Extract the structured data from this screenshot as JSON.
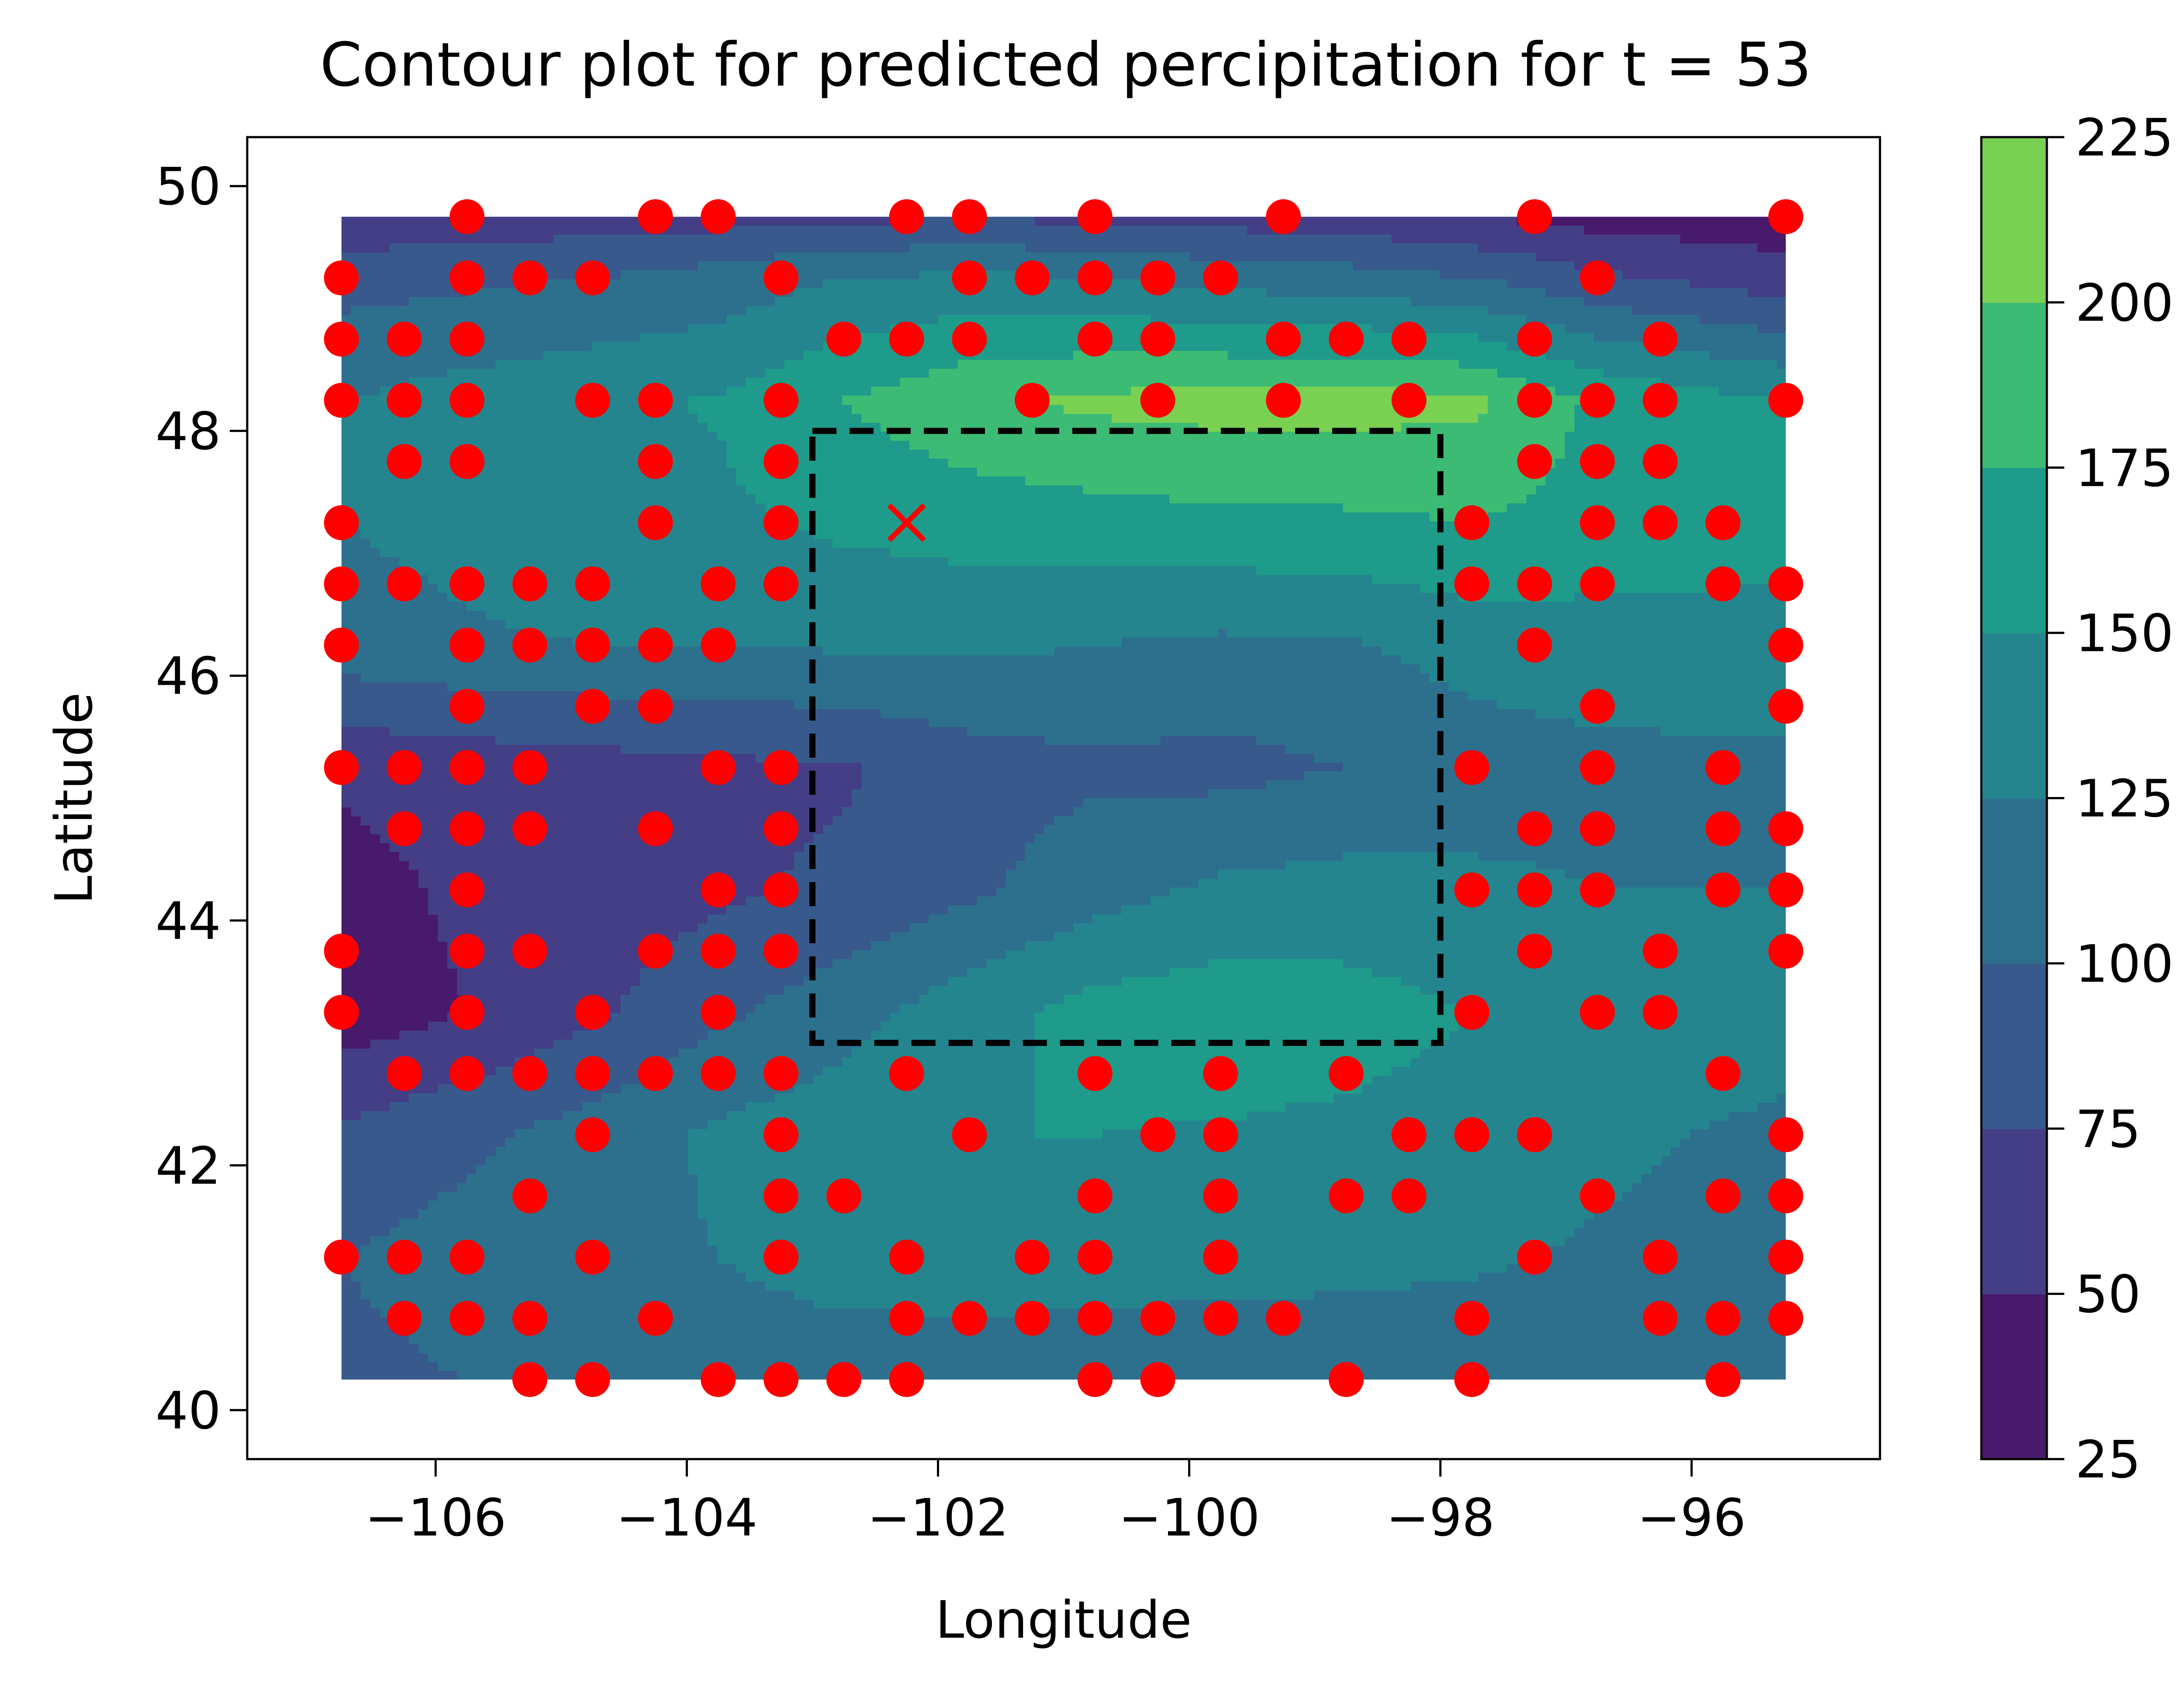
{
  "chart_data": {
    "type": "contour",
    "title": "Contour plot for predicted percipitation for t = 53",
    "xlabel": "Longitude",
    "ylabel": "Latitude",
    "xlim": [
      -107.5,
      -94.5
    ],
    "ylim": [
      39.6,
      50.4
    ],
    "x_ticks": [
      -106,
      -104,
      -102,
      -100,
      -98,
      -96
    ],
    "x_tick_labels": [
      "−106",
      "−104",
      "−102",
      "−100",
      "−98",
      "−96"
    ],
    "y_ticks": [
      40,
      42,
      44,
      46,
      48,
      50
    ],
    "y_tick_labels": [
      "40",
      "42",
      "44",
      "46",
      "48",
      "50"
    ],
    "grid": false,
    "colorbar": {
      "levels": [
        25,
        50,
        75,
        100,
        125,
        150,
        175,
        200,
        225
      ],
      "tick_labels": [
        "25",
        "50",
        "75",
        "100",
        "125",
        "150",
        "175",
        "200",
        "225"
      ],
      "colors": [
        "#481a6c",
        "#433e85",
        "#38598c",
        "#2d708e",
        "#25858e",
        "#1e9b8a",
        "#3cbb75",
        "#7ad151",
        "#d2e21b"
      ]
    },
    "field": {
      "lon": [
        -106.75,
        -105.75,
        -104.75,
        -103.75,
        -102.75,
        -101.75,
        -100.75,
        -99.75,
        -98.75,
        -97.75,
        -96.75,
        -95.25
      ],
      "lat": [
        40.25,
        41.25,
        42.25,
        43.25,
        44.25,
        45.25,
        46.25,
        47.25,
        48.25,
        49.25,
        49.75
      ],
      "values": [
        [
          95,
          100,
          108,
          112,
          112,
          108,
          105,
          105,
          108,
          110,
          108,
          105
        ],
        [
          100,
          110,
          115,
          125,
          135,
          140,
          140,
          135,
          132,
          128,
          122,
          115
        ],
        [
          80,
          95,
          110,
          130,
          140,
          150,
          150,
          148,
          145,
          140,
          130,
          120
        ],
        [
          35,
          50,
          70,
          95,
          115,
          140,
          160,
          165,
          160,
          150,
          140,
          135
        ],
        [
          40,
          55,
          60,
          70,
          80,
          95,
          115,
          130,
          135,
          130,
          125,
          125
        ],
        [
          55,
          60,
          65,
          70,
          72,
          88,
          95,
          92,
          100,
          112,
          118,
          120
        ],
        [
          115,
          122,
          125,
          125,
          128,
          130,
          125,
          120,
          122,
          135,
          140,
          140
        ],
        [
          125,
          132,
          140,
          145,
          155,
          160,
          165,
          168,
          170,
          175,
          165,
          160
        ],
        [
          125,
          135,
          145,
          152,
          175,
          195,
          205,
          210,
          210,
          205,
          170,
          150
        ],
        [
          90,
          95,
          100,
          110,
          125,
          130,
          125,
          115,
          110,
          100,
          80,
          60
        ],
        [
          55,
          60,
          62,
          65,
          70,
          72,
          70,
          65,
          60,
          50,
          40,
          35
        ]
      ]
    },
    "region_box": {
      "lon": [
        -103,
        -98
      ],
      "lat": [
        43,
        48
      ],
      "style": "dashed"
    },
    "target_marker": {
      "lon": -102.25,
      "lat": 47.25,
      "symbol": "x"
    },
    "station_points": [
      [
        -106.75,
        49.25
      ],
      [
        -106.75,
        48.75
      ],
      [
        -106.75,
        48.25
      ],
      [
        -106.75,
        47.25
      ],
      [
        -106.75,
        46.75
      ],
      [
        -106.75,
        46.25
      ],
      [
        -106.75,
        45.25
      ],
      [
        -106.75,
        43.75
      ],
      [
        -106.75,
        43.25
      ],
      [
        -106.75,
        41.25
      ],
      [
        -106.25,
        48.75
      ],
      [
        -106.25,
        48.25
      ],
      [
        -106.25,
        47.75
      ],
      [
        -106.25,
        46.75
      ],
      [
        -106.25,
        45.25
      ],
      [
        -106.25,
        44.75
      ],
      [
        -106.25,
        42.75
      ],
      [
        -106.25,
        41.25
      ],
      [
        -106.25,
        40.75
      ],
      [
        -105.75,
        49.75
      ],
      [
        -105.75,
        49.25
      ],
      [
        -105.75,
        48.75
      ],
      [
        -105.75,
        48.25
      ],
      [
        -105.75,
        47.75
      ],
      [
        -105.75,
        46.75
      ],
      [
        -105.75,
        46.25
      ],
      [
        -105.75,
        45.75
      ],
      [
        -105.75,
        45.25
      ],
      [
        -105.75,
        44.75
      ],
      [
        -105.75,
        44.25
      ],
      [
        -105.75,
        43.75
      ],
      [
        -105.75,
        43.25
      ],
      [
        -105.75,
        42.75
      ],
      [
        -105.75,
        41.25
      ],
      [
        -105.75,
        40.75
      ],
      [
        -105.25,
        49.25
      ],
      [
        -105.25,
        46.75
      ],
      [
        -105.25,
        46.25
      ],
      [
        -105.25,
        45.25
      ],
      [
        -105.25,
        44.75
      ],
      [
        -105.25,
        43.75
      ],
      [
        -105.25,
        42.75
      ],
      [
        -105.25,
        41.75
      ],
      [
        -105.25,
        40.75
      ],
      [
        -105.25,
        40.25
      ],
      [
        -104.75,
        49.25
      ],
      [
        -104.75,
        48.25
      ],
      [
        -104.75,
        46.75
      ],
      [
        -104.75,
        46.25
      ],
      [
        -104.75,
        45.75
      ],
      [
        -104.75,
        43.25
      ],
      [
        -104.75,
        42.75
      ],
      [
        -104.75,
        42.25
      ],
      [
        -104.75,
        41.25
      ],
      [
        -104.75,
        40.25
      ],
      [
        -104.25,
        49.75
      ],
      [
        -104.25,
        48.25
      ],
      [
        -104.25,
        47.75
      ],
      [
        -104.25,
        47.25
      ],
      [
        -104.25,
        46.25
      ],
      [
        -104.25,
        45.75
      ],
      [
        -104.25,
        44.75
      ],
      [
        -104.25,
        43.75
      ],
      [
        -104.25,
        42.75
      ],
      [
        -104.25,
        40.75
      ],
      [
        -103.75,
        49.75
      ],
      [
        -103.75,
        46.75
      ],
      [
        -103.75,
        46.25
      ],
      [
        -103.75,
        45.25
      ],
      [
        -103.75,
        44.25
      ],
      [
        -103.75,
        43.75
      ],
      [
        -103.75,
        43.25
      ],
      [
        -103.75,
        42.75
      ],
      [
        -103.75,
        40.25
      ],
      [
        -103.25,
        49.25
      ],
      [
        -103.25,
        48.25
      ],
      [
        -103.25,
        47.75
      ],
      [
        -103.25,
        47.25
      ],
      [
        -103.25,
        46.75
      ],
      [
        -103.25,
        45.25
      ],
      [
        -103.25,
        44.75
      ],
      [
        -103.25,
        44.25
      ],
      [
        -103.25,
        43.75
      ],
      [
        -103.25,
        42.75
      ],
      [
        -103.25,
        42.25
      ],
      [
        -103.25,
        41.75
      ],
      [
        -103.25,
        41.25
      ],
      [
        -103.25,
        40.25
      ],
      [
        -102.75,
        48.75
      ],
      [
        -102.75,
        41.75
      ],
      [
        -102.75,
        40.25
      ],
      [
        -102.25,
        49.75
      ],
      [
        -102.25,
        48.75
      ],
      [
        -102.25,
        42.75
      ],
      [
        -102.25,
        41.25
      ],
      [
        -102.25,
        40.75
      ],
      [
        -102.25,
        40.25
      ],
      [
        -101.75,
        49.75
      ],
      [
        -101.75,
        49.25
      ],
      [
        -101.75,
        48.75
      ],
      [
        -101.75,
        42.25
      ],
      [
        -101.75,
        40.75
      ],
      [
        -101.25,
        49.25
      ],
      [
        -101.25,
        48.25
      ],
      [
        -101.25,
        41.25
      ],
      [
        -101.25,
        40.75
      ],
      [
        -100.75,
        49.75
      ],
      [
        -100.75,
        49.25
      ],
      [
        -100.75,
        48.75
      ],
      [
        -100.75,
        42.75
      ],
      [
        -100.75,
        41.75
      ],
      [
        -100.75,
        41.25
      ],
      [
        -100.75,
        40.75
      ],
      [
        -100.75,
        40.25
      ],
      [
        -100.25,
        49.25
      ],
      [
        -100.25,
        48.75
      ],
      [
        -100.25,
        48.25
      ],
      [
        -100.25,
        42.25
      ],
      [
        -100.25,
        40.75
      ],
      [
        -100.25,
        40.25
      ],
      [
        -99.75,
        49.25
      ],
      [
        -99.75,
        42.75
      ],
      [
        -99.75,
        42.25
      ],
      [
        -99.75,
        41.75
      ],
      [
        -99.75,
        41.25
      ],
      [
        -99.75,
        40.75
      ],
      [
        -99.25,
        49.75
      ],
      [
        -99.25,
        48.75
      ],
      [
        -99.25,
        48.25
      ],
      [
        -99.25,
        40.75
      ],
      [
        -98.75,
        48.75
      ],
      [
        -98.75,
        42.75
      ],
      [
        -98.75,
        41.75
      ],
      [
        -98.75,
        40.25
      ],
      [
        -98.25,
        48.75
      ],
      [
        -98.25,
        48.25
      ],
      [
        -98.25,
        42.25
      ],
      [
        -98.25,
        41.75
      ],
      [
        -97.75,
        47.25
      ],
      [
        -97.75,
        46.75
      ],
      [
        -97.75,
        45.25
      ],
      [
        -97.75,
        44.25
      ],
      [
        -97.75,
        43.25
      ],
      [
        -97.75,
        42.25
      ],
      [
        -97.75,
        40.75
      ],
      [
        -97.75,
        40.25
      ],
      [
        -97.25,
        49.75
      ],
      [
        -97.25,
        48.75
      ],
      [
        -97.25,
        48.25
      ],
      [
        -97.25,
        47.75
      ],
      [
        -97.25,
        46.75
      ],
      [
        -97.25,
        46.25
      ],
      [
        -97.25,
        44.75
      ],
      [
        -97.25,
        44.25
      ],
      [
        -97.25,
        43.75
      ],
      [
        -97.25,
        42.25
      ],
      [
        -97.25,
        41.25
      ],
      [
        -96.75,
        49.25
      ],
      [
        -96.75,
        48.25
      ],
      [
        -96.75,
        47.75
      ],
      [
        -96.75,
        47.25
      ],
      [
        -96.75,
        46.75
      ],
      [
        -96.75,
        45.75
      ],
      [
        -96.75,
        45.25
      ],
      [
        -96.75,
        44.75
      ],
      [
        -96.75,
        44.25
      ],
      [
        -96.75,
        43.25
      ],
      [
        -96.75,
        41.75
      ],
      [
        -96.25,
        48.75
      ],
      [
        -96.25,
        48.25
      ],
      [
        -96.25,
        47.75
      ],
      [
        -96.25,
        47.25
      ],
      [
        -96.25,
        43.75
      ],
      [
        -96.25,
        43.25
      ],
      [
        -96.25,
        41.25
      ],
      [
        -96.25,
        40.75
      ],
      [
        -95.75,
        47.25
      ],
      [
        -95.75,
        46.75
      ],
      [
        -95.75,
        45.25
      ],
      [
        -95.75,
        44.75
      ],
      [
        -95.75,
        44.25
      ],
      [
        -95.75,
        42.75
      ],
      [
        -95.75,
        41.75
      ],
      [
        -95.75,
        40.75
      ],
      [
        -95.75,
        40.25
      ],
      [
        -95.25,
        49.75
      ],
      [
        -95.25,
        48.25
      ],
      [
        -95.25,
        46.75
      ],
      [
        -95.25,
        46.25
      ],
      [
        -95.25,
        45.75
      ],
      [
        -95.25,
        44.75
      ],
      [
        -95.25,
        44.25
      ],
      [
        -95.25,
        43.75
      ],
      [
        -95.25,
        42.25
      ],
      [
        -95.25,
        41.75
      ],
      [
        -95.25,
        41.25
      ],
      [
        -95.25,
        40.75
      ]
    ],
    "marker_color": "#ff0000",
    "legend": "none"
  }
}
